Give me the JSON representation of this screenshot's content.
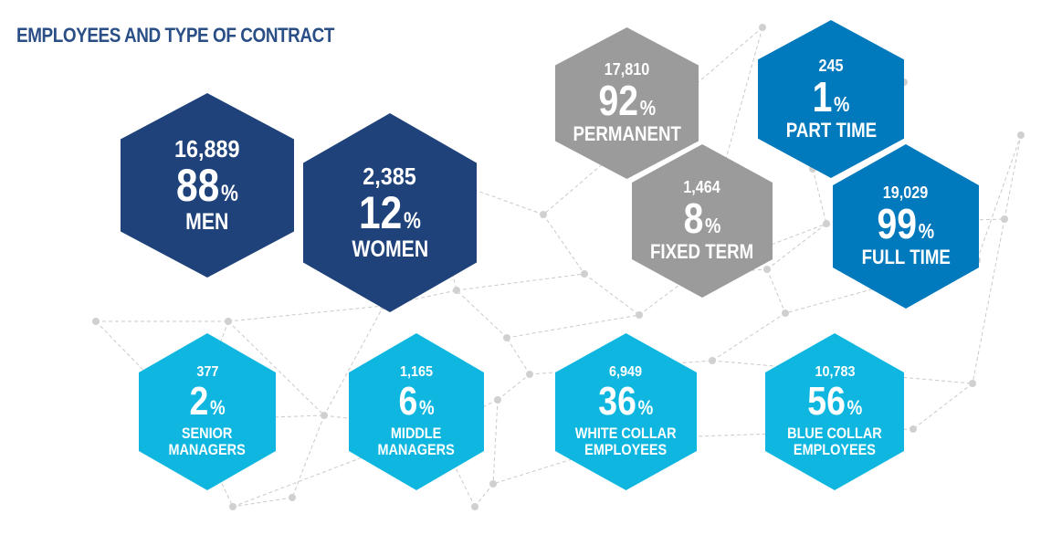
{
  "title": "EMPLOYEES AND TYPE OF CONTRACT",
  "colors": {
    "title": "#2a4e86",
    "dark_navy": "#1e4279",
    "gray": "#9b9b9b",
    "mid_blue": "#0079bd",
    "cyan": "#0fb7e0",
    "network": "#c9c9c9"
  },
  "percent_symbol": "%",
  "chart_data": {
    "type": "table",
    "title": "EMPLOYEES AND TYPE OF CONTRACT",
    "groups": [
      {
        "name": "gender",
        "items": [
          {
            "count": "16,889",
            "percent": 88,
            "label": "MEN",
            "color": "#1e4279"
          },
          {
            "count": "2,385",
            "percent": 12,
            "label": "WOMEN",
            "color": "#1e4279"
          }
        ]
      },
      {
        "name": "contract_duration",
        "items": [
          {
            "count": "17,810",
            "percent": 92,
            "label": "PERMANENT",
            "color": "#9b9b9b"
          },
          {
            "count": "1,464",
            "percent": 8,
            "label": "FIXED TERM",
            "color": "#9b9b9b"
          }
        ]
      },
      {
        "name": "working_time",
        "items": [
          {
            "count": "245",
            "percent": 1,
            "label": "PART TIME",
            "color": "#0079bd"
          },
          {
            "count": "19,029",
            "percent": 99,
            "label": "FULL TIME",
            "color": "#0079bd"
          }
        ]
      },
      {
        "name": "category",
        "items": [
          {
            "count": "377",
            "percent": 2,
            "label": "SENIOR MANAGERS",
            "color": "#0fb7e0"
          },
          {
            "count": "1,165",
            "percent": 6,
            "label": "MIDDLE MANAGERS",
            "color": "#0fb7e0"
          },
          {
            "count": "6,949",
            "percent": 36,
            "label": "WHITE COLLAR EMPLOYEES",
            "color": "#0fb7e0"
          },
          {
            "count": "10,783",
            "percent": 56,
            "label": "BLUE COLLAR EMPLOYEES",
            "color": "#0fb7e0"
          }
        ]
      }
    ]
  },
  "hexagons": {
    "men": {
      "count": "16,889",
      "pct": "88",
      "label": [
        "MEN"
      ]
    },
    "women": {
      "count": "2,385",
      "pct": "12",
      "label": [
        "WOMEN"
      ]
    },
    "permanent": {
      "count": "17,810",
      "pct": "92",
      "label": [
        "PERMANENT"
      ]
    },
    "fixed_term": {
      "count": "1,464",
      "pct": "8",
      "label": [
        "FIXED TERM"
      ]
    },
    "part_time": {
      "count": "245",
      "pct": "1",
      "label": [
        "PART TIME"
      ]
    },
    "full_time": {
      "count": "19,029",
      "pct": "99",
      "label": [
        "FULL TIME"
      ]
    },
    "senior": {
      "count": "377",
      "pct": "2",
      "label": [
        "SENIOR",
        "MANAGERS"
      ]
    },
    "middle": {
      "count": "1,165",
      "pct": "6",
      "label": [
        "MIDDLE",
        "MANAGERS"
      ]
    },
    "white_collar": {
      "count": "6,949",
      "pct": "36",
      "label": [
        "WHITE COLLAR",
        "EMPLOYEES"
      ]
    },
    "blue_collar": {
      "count": "10,783",
      "pct": "56",
      "label": [
        "BLUE COLLAR",
        "EMPLOYEES"
      ]
    }
  }
}
